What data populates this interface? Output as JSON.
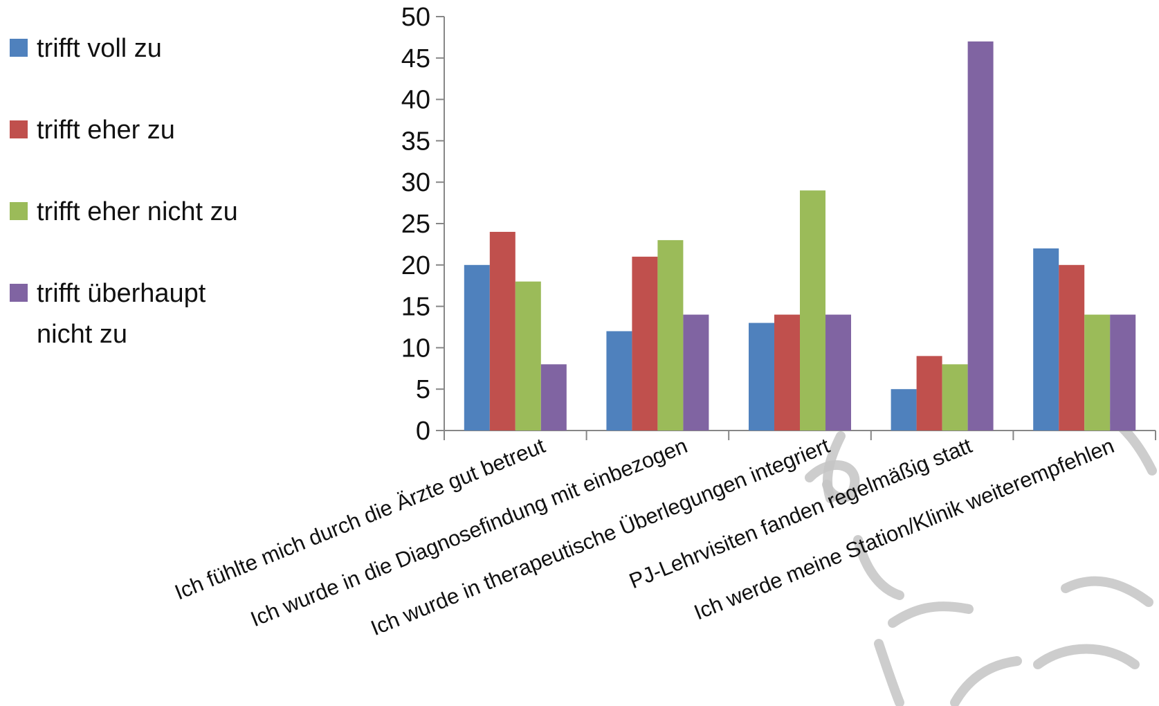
{
  "chart_data": {
    "type": "bar",
    "categories": [
      "Ich fühlte mich durch die Ärzte gut betreut",
      "Ich wurde in die Diagnosefindung mit einbezogen",
      "Ich wurde in therapeutische Überlegungen integriert",
      "PJ-Lehrvisiten fanden regelmäßig statt",
      "Ich werde meine Station/Klinik weiterempfehlen"
    ],
    "series": [
      {
        "name": "trifft voll zu",
        "color": "#4f81bd",
        "values": [
          20,
          12,
          13,
          5,
          22
        ]
      },
      {
        "name": "trifft eher zu",
        "color": "#c0504d",
        "values": [
          24,
          21,
          14,
          9,
          20
        ]
      },
      {
        "name": "trifft eher nicht zu",
        "color": "#9bbb59",
        "values": [
          18,
          23,
          29,
          8,
          14
        ]
      },
      {
        "name": "trifft überhaupt nicht zu",
        "color": "#8064a2",
        "values": [
          8,
          14,
          14,
          47,
          14
        ]
      }
    ],
    "ylim": [
      0,
      50
    ],
    "yticks": [
      0,
      5,
      10,
      15,
      20,
      25,
      30,
      35,
      40,
      45,
      50
    ],
    "grid": false,
    "legend_position": "left"
  }
}
